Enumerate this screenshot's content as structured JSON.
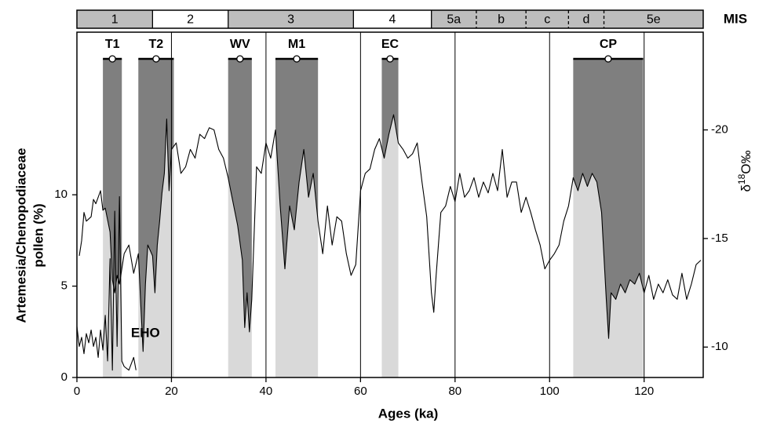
{
  "chart_data": {
    "type": "line",
    "xlabel": "Ages (ka)",
    "ylabel": [
      "Artemesia/Chenopodiaceae",
      "pollen (%)"
    ],
    "y2label": {
      "prefix": "δ",
      "sup": "18",
      "suffix": "O‰"
    },
    "xlim": [
      0,
      132.5
    ],
    "ylim": [
      0,
      18.9
    ],
    "y2lim": [
      -24.5,
      -8.6
    ],
    "y2_inverted": true,
    "xticks": [
      0,
      20,
      40,
      60,
      80,
      100,
      120
    ],
    "yticks": [
      0,
      5,
      10
    ],
    "y2ticks": [
      -10,
      -15,
      -20
    ],
    "grid": true,
    "mis": {
      "label": "MIS",
      "stages": [
        {
          "name": "1",
          "start": 0,
          "end": 16,
          "color": "#bdbdbd"
        },
        {
          "name": "2",
          "start": 16,
          "end": 32,
          "color": "#ffffff"
        },
        {
          "name": "3",
          "start": 32,
          "end": 58.5,
          "color": "#bdbdbd"
        },
        {
          "name": "4",
          "start": 58.5,
          "end": 75,
          "color": "#ffffff"
        },
        {
          "name": "5a",
          "start": 75,
          "end": 84.5,
          "color": "#bdbdbd"
        },
        {
          "name": "b",
          "start": 84.5,
          "end": 95,
          "color": "#bdbdbd"
        },
        {
          "name": "c",
          "start": 95,
          "end": 104,
          "color": "#bdbdbd"
        },
        {
          "name": "d",
          "start": 104,
          "end": 111.5,
          "color": "#bdbdbd"
        },
        {
          "name": "5e",
          "start": 111.5,
          "end": 132.5,
          "color": "#bdbdbd"
        }
      ]
    },
    "events": [
      {
        "name": "T1",
        "start": 5.5,
        "end": 9.5
      },
      {
        "name": "T2",
        "start": 13,
        "end": 20.5
      },
      {
        "name": "WV",
        "start": 32,
        "end": 37
      },
      {
        "name": "M1",
        "start": 42,
        "end": 51
      },
      {
        "name": "EC",
        "start": 64.5,
        "end": 68
      },
      {
        "name": "CP",
        "start": 105,
        "end": 119.8
      }
    ],
    "event_colors": {
      "dark": "#7f7f7f",
      "light": "#d9d9d9"
    },
    "annotations": [
      {
        "text": "EHO",
        "x": 14.5,
        "y": 2.4
      }
    ],
    "series": [
      {
        "name": "Artemesia/Chenopodiaceae pollen",
        "color": "#000000",
        "axis": "y",
        "x": [
          0,
          0.5,
          1,
          1.5,
          2,
          2.5,
          3,
          3.5,
          4,
          4.5,
          5,
          5.5,
          6,
          6.5,
          7,
          7.5,
          8,
          8.5,
          9,
          9.5,
          10,
          11,
          12,
          12.5
        ],
        "values": [
          2.8,
          1.7,
          2.2,
          1.3,
          2.4,
          1.9,
          2.6,
          1.7,
          2.2,
          1.1,
          2.6,
          1.5,
          3.4,
          0.9,
          6.5,
          0.4,
          9.1,
          1.7,
          9.9,
          0.9,
          0.6,
          0.4,
          1.1,
          0.4
        ]
      },
      {
        "name": "δ18O",
        "color": "#000000",
        "axis": "y2",
        "x": [
          0.5,
          1,
          1.5,
          2,
          3,
          3.5,
          4,
          5,
          5.5,
          6,
          7,
          7.5,
          8,
          8.5,
          9,
          10,
          11,
          12,
          13,
          13.5,
          14,
          14.5,
          15,
          16,
          16.5,
          17,
          17.5,
          18,
          18.5,
          19,
          19.5,
          20,
          21,
          22,
          23,
          24,
          25,
          26,
          27,
          28,
          29,
          30,
          31,
          32,
          33,
          34,
          35,
          35.5,
          36,
          36.5,
          37,
          38,
          39,
          40,
          41,
          42,
          43,
          44,
          45,
          46,
          47,
          48,
          49,
          50,
          51,
          52,
          53,
          54,
          55,
          56,
          57,
          58,
          59,
          60,
          61,
          62,
          63,
          64,
          65,
          66,
          67,
          68,
          69,
          70,
          71,
          72,
          73,
          74,
          75,
          75.5,
          76,
          77,
          78,
          79,
          80,
          81,
          82,
          83,
          84,
          85,
          86,
          87,
          88,
          89,
          90,
          91,
          92,
          93,
          94,
          95,
          96,
          97,
          98,
          99,
          100,
          101,
          102,
          103,
          104,
          105,
          106,
          107,
          108,
          109,
          110,
          111,
          112,
          112.5,
          113,
          114,
          115,
          116,
          117,
          118,
          119,
          120,
          121,
          122,
          123,
          124,
          125,
          126,
          127,
          128,
          129,
          130,
          131,
          132
        ],
        "values": [
          -14.2,
          -14.9,
          -16.2,
          -15.8,
          -16.0,
          -16.8,
          -16.6,
          -17.2,
          -16.3,
          -16.4,
          -15.3,
          -13.1,
          -12.5,
          -13.3,
          -12.9,
          -14.3,
          -14.7,
          -13.4,
          -14.3,
          -12.0,
          -9.8,
          -12.9,
          -14.7,
          -14.2,
          -12.5,
          -14.7,
          -15.8,
          -17.1,
          -18.0,
          -20.5,
          -17.2,
          -19.1,
          -19.4,
          -18.0,
          -18.3,
          -19.1,
          -18.7,
          -19.8,
          -19.6,
          -20.1,
          -20.0,
          -19.1,
          -18.7,
          -17.8,
          -16.7,
          -15.6,
          -14.0,
          -10.9,
          -12.5,
          -10.7,
          -12.2,
          -18.3,
          -18.0,
          -19.4,
          -18.7,
          -20.0,
          -16.5,
          -13.6,
          -16.5,
          -15.4,
          -17.6,
          -19.1,
          -16.9,
          -18.0,
          -15.8,
          -14.3,
          -16.5,
          -14.7,
          -16.0,
          -15.8,
          -14.3,
          -13.3,
          -13.8,
          -17.2,
          -18.0,
          -18.2,
          -19.1,
          -19.6,
          -18.7,
          -19.8,
          -20.7,
          -19.4,
          -19.1,
          -18.7,
          -18.9,
          -19.4,
          -17.6,
          -16.0,
          -12.5,
          -11.6,
          -13.3,
          -16.2,
          -16.5,
          -17.4,
          -16.7,
          -18.0,
          -16.9,
          -17.2,
          -17.8,
          -16.9,
          -17.6,
          -17.1,
          -18.0,
          -17.2,
          -19.1,
          -16.9,
          -17.6,
          -17.6,
          -16.2,
          -16.9,
          -16.2,
          -15.4,
          -14.7,
          -13.6,
          -14.0,
          -14.3,
          -14.7,
          -15.8,
          -16.5,
          -17.8,
          -17.2,
          -18.0,
          -17.4,
          -18.0,
          -17.6,
          -16.2,
          -12.2,
          -10.4,
          -12.5,
          -12.2,
          -12.9,
          -12.5,
          -13.1,
          -12.9,
          -13.4,
          -12.5,
          -13.3,
          -12.2,
          -12.9,
          -12.5,
          -13.1,
          -12.4,
          -12.2,
          -13.4,
          -12.2,
          -12.9,
          -13.8,
          -14.0
        ]
      }
    ]
  }
}
